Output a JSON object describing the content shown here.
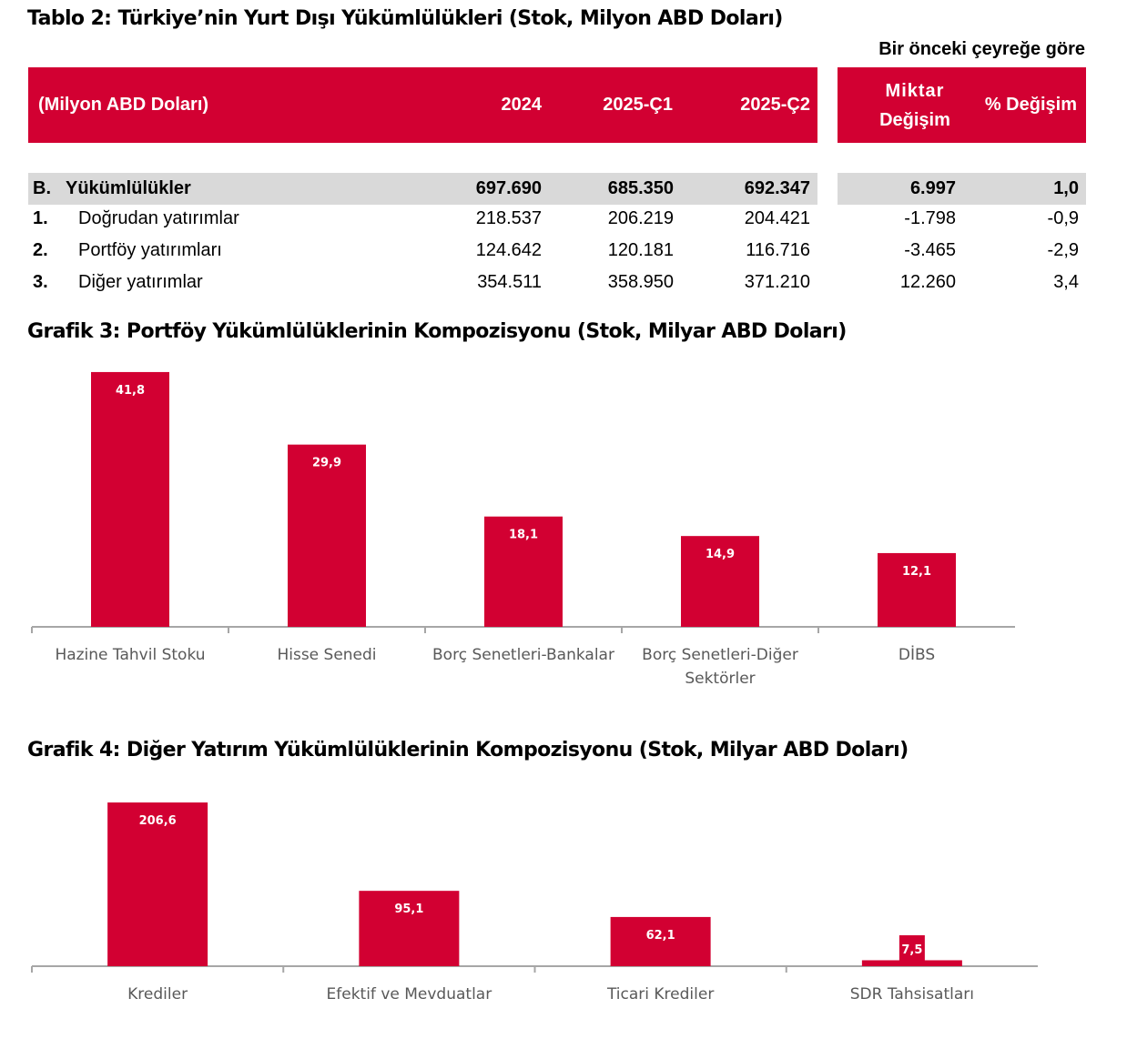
{
  "table": {
    "title": "Tablo 2: Türkiye’nin Yurt Dışı Yükümlülükleri (Stok, Milyon ABD Doları)",
    "subheader": "Bir önceki çeyreğe göre",
    "columns": {
      "label": "(Milyon ABD Doları)",
      "y2024": "2024",
      "q1": "2025-Ç1",
      "q2": "2025-Ç2",
      "change_amount_line1": "Miktar",
      "change_amount_line2": "Değişim",
      "change_pct": "% Değişim"
    },
    "rows": [
      {
        "num": "B.",
        "label": "Yükümlülükler",
        "y2024": "697.690",
        "q1": "685.350",
        "q2": "692.347",
        "change": "6.997",
        "pct": "1,0"
      },
      {
        "num": "1.",
        "label": "Doğrudan yatırımlar",
        "y2024": "218.537",
        "q1": "206.219",
        "q2": "204.421",
        "change": "-1.798",
        "pct": "-0,9"
      },
      {
        "num": "2.",
        "label": "Portföy yatırımları",
        "y2024": "124.642",
        "q1": "120.181",
        "q2": "116.716",
        "change": "-3.465",
        "pct": "-2,9"
      },
      {
        "num": "3.",
        "label": "Diğer yatırımlar",
        "y2024": "354.511",
        "q1": "358.950",
        "q2": "371.210",
        "change": "12.260",
        "pct": "3,4"
      }
    ]
  },
  "colors": {
    "accent": "#d20032",
    "total_row_bg": "#d9d9d9",
    "axis": "#a6a6a6",
    "category_text": "#595959"
  },
  "chart_data": [
    {
      "type": "bar",
      "title": "Grafik 3: Portföy Yükümlülüklerinin Kompozisyonu (Stok, Milyar ABD Doları)",
      "categories": [
        [
          "Hazine Tahvil Stoku"
        ],
        [
          "Hisse Senedi"
        ],
        [
          "Borç Senetleri-Bankalar"
        ],
        [
          "Borç Senetleri-Diğer",
          "Sektörler"
        ],
        [
          "DİBS"
        ]
      ],
      "values": [
        41.8,
        29.9,
        18.1,
        14.9,
        12.1
      ],
      "labels": [
        "41,8",
        "29,9",
        "18,1",
        "14,9",
        "12,1"
      ],
      "xlabel": "",
      "ylabel": "",
      "ylim": [
        0,
        45
      ],
      "grid": false,
      "legend": "none"
    },
    {
      "type": "bar",
      "title": "Grafik 4: Diğer Yatırım Yükümlülüklerinin Kompozisyonu (Stok, Milyar ABD Doları)",
      "categories": [
        [
          "Krediler"
        ],
        [
          "Efektif ve Mevduatlar"
        ],
        [
          "Ticari Krediler"
        ],
        [
          "SDR Tahsisatları"
        ]
      ],
      "values": [
        206.6,
        95.1,
        62.1,
        7.5
      ],
      "labels": [
        "206,6",
        "95,1",
        "62,1",
        "7,5"
      ],
      "xlabel": "",
      "ylabel": "",
      "ylim": [
        0,
        220
      ],
      "grid": false,
      "legend": "none"
    }
  ]
}
